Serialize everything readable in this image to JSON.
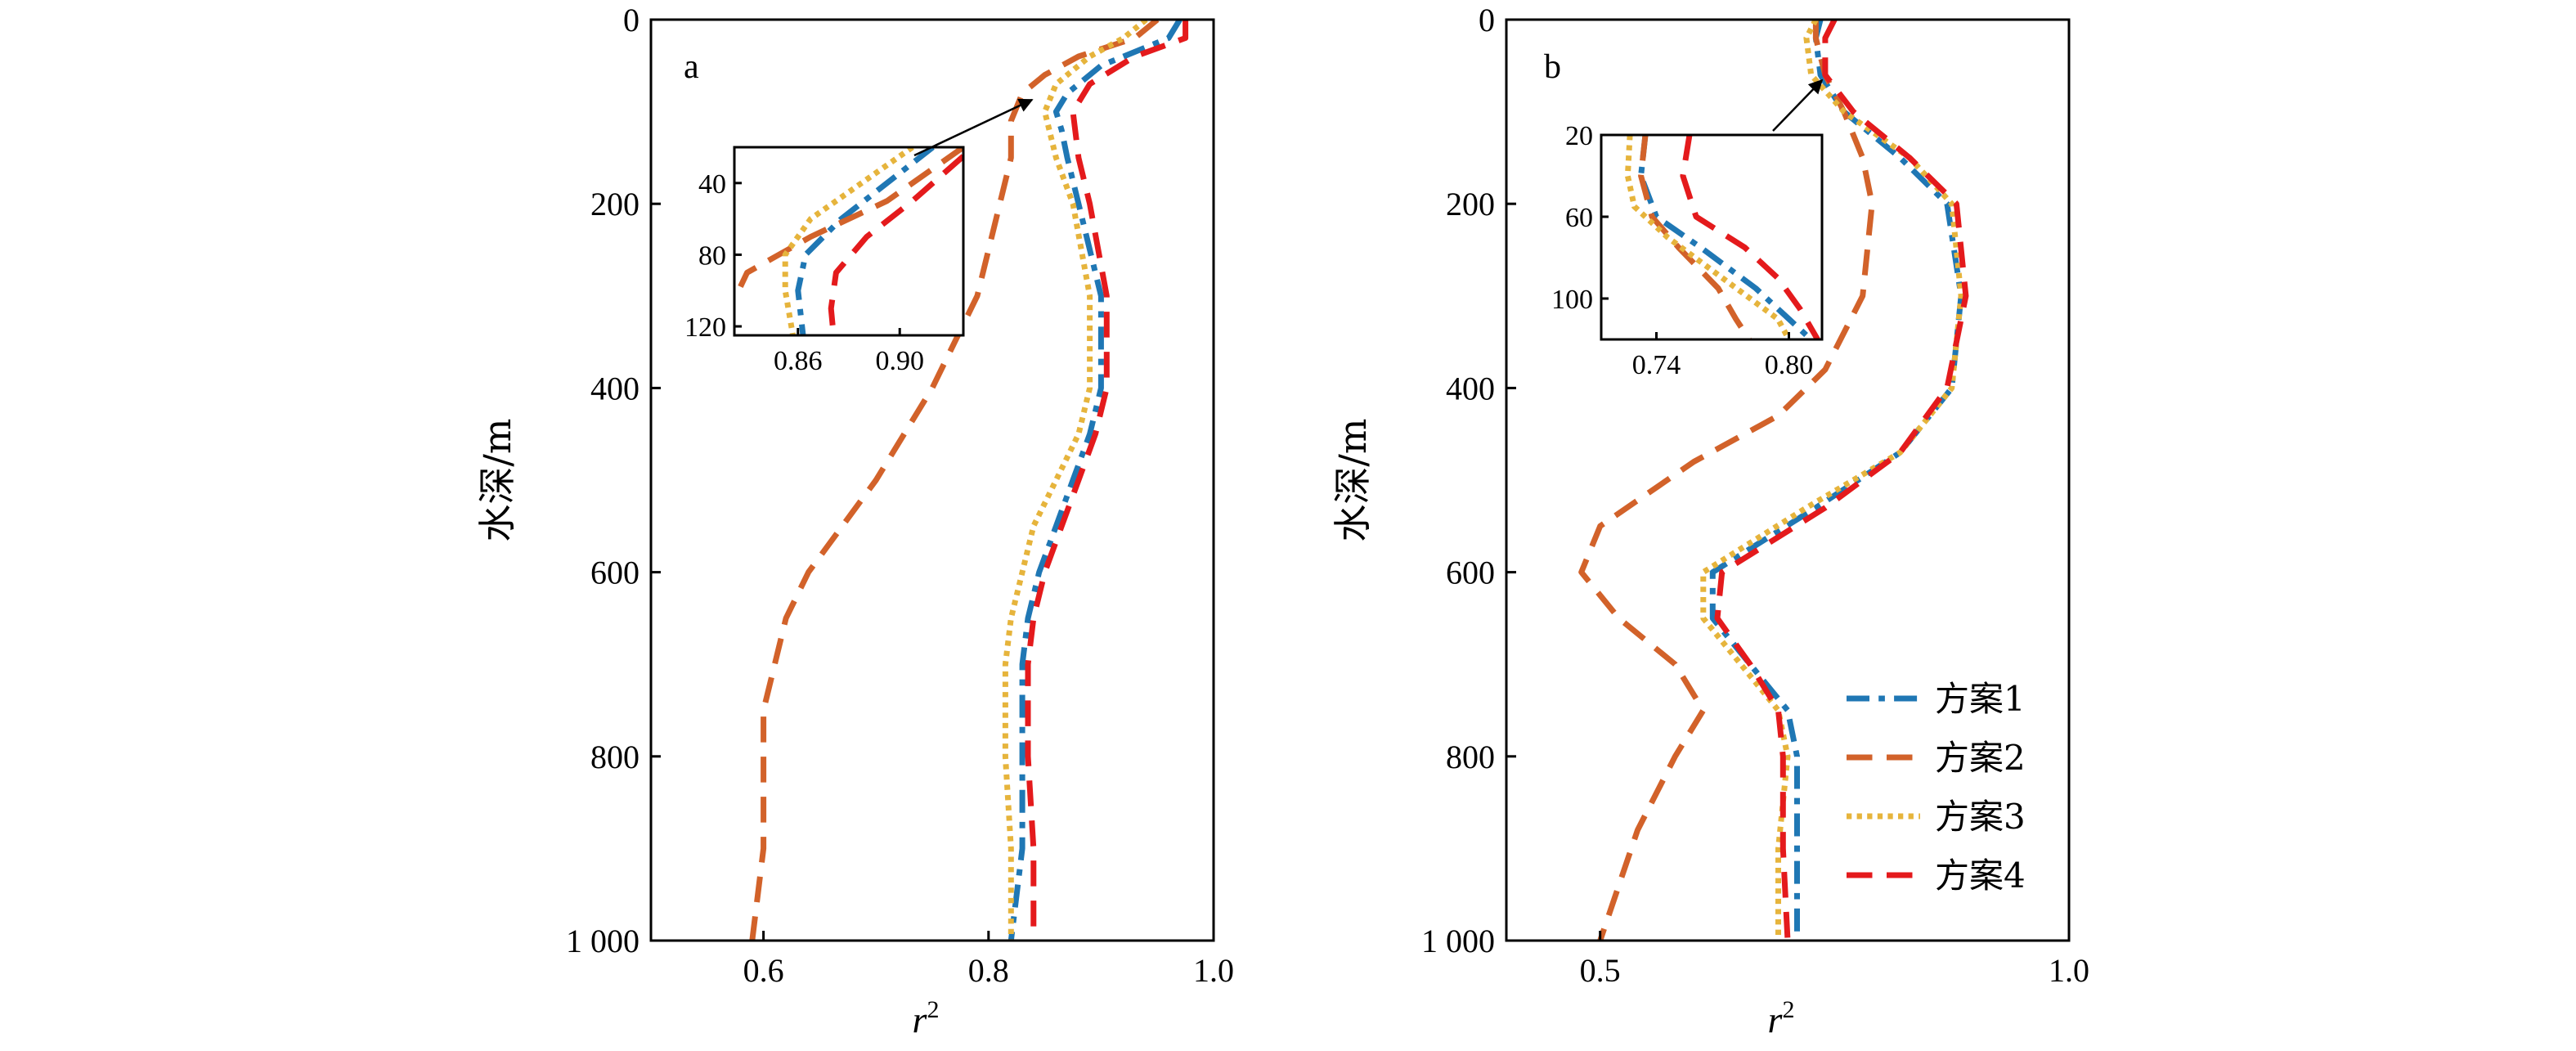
{
  "chart_data": [
    {
      "type": "line",
      "panel_label": "a",
      "xlabel": "r",
      "xlabel_sup": "2",
      "ylabel": "水深/m",
      "xlim": [
        0.5,
        1.0
      ],
      "ylim": [
        1000,
        0
      ],
      "xticks": [
        0.6,
        0.8,
        1.0
      ],
      "xtick_labels": [
        "0.6",
        "0.8",
        "1.0"
      ],
      "yticks": [
        0,
        200,
        400,
        600,
        800,
        1000
      ],
      "ytick_labels": [
        "0",
        "200",
        "400",
        "600",
        "800",
        "1 000"
      ],
      "series": [
        {
          "name": "方案1",
          "color": "#1f77b4",
          "dash": "dashdot",
          "points": [
            [
              0.97,
              0
            ],
            [
              0.96,
              20
            ],
            [
              0.9,
              50
            ],
            [
              0.87,
              80
            ],
            [
              0.86,
              100
            ],
            [
              0.865,
              120
            ],
            [
              0.87,
              150
            ],
            [
              0.88,
              200
            ],
            [
              0.9,
              300
            ],
            [
              0.9,
              400
            ],
            [
              0.89,
              450
            ],
            [
              0.875,
              500
            ],
            [
              0.86,
              550
            ],
            [
              0.845,
              600
            ],
            [
              0.835,
              650
            ],
            [
              0.83,
              700
            ],
            [
              0.83,
              800
            ],
            [
              0.83,
              850
            ],
            [
              0.83,
              900
            ],
            [
              0.82,
              1000
            ]
          ]
        },
        {
          "name": "方案2",
          "color": "#d2622a",
          "dash": "dashed",
          "points": [
            [
              0.95,
              0
            ],
            [
              0.93,
              20
            ],
            [
              0.88,
              40
            ],
            [
              0.85,
              60
            ],
            [
              0.83,
              80
            ],
            [
              0.82,
              110
            ],
            [
              0.82,
              150
            ],
            [
              0.81,
              200
            ],
            [
              0.79,
              300
            ],
            [
              0.75,
              400
            ],
            [
              0.7,
              500
            ],
            [
              0.64,
              600
            ],
            [
              0.62,
              650
            ],
            [
              0.6,
              750
            ],
            [
              0.6,
              800
            ],
            [
              0.6,
              900
            ],
            [
              0.59,
              1000
            ]
          ]
        },
        {
          "name": "方案3",
          "color": "#e6b43c",
          "dash": "dotted",
          "points": [
            [
              0.94,
              0
            ],
            [
              0.92,
              20
            ],
            [
              0.89,
              40
            ],
            [
              0.86,
              70
            ],
            [
              0.85,
              100
            ],
            [
              0.86,
              150
            ],
            [
              0.875,
              200
            ],
            [
              0.89,
              300
            ],
            [
              0.89,
              400
            ],
            [
              0.88,
              450
            ],
            [
              0.86,
              500
            ],
            [
              0.84,
              550
            ],
            [
              0.83,
              600
            ],
            [
              0.82,
              650
            ],
            [
              0.815,
              700
            ],
            [
              0.815,
              800
            ],
            [
              0.82,
              900
            ],
            [
              0.82,
              1000
            ]
          ]
        },
        {
          "name": "方案4",
          "color": "#e41a1c",
          "dash": "dashed",
          "points": [
            [
              0.975,
              0
            ],
            [
              0.975,
              20
            ],
            [
              0.93,
              40
            ],
            [
              0.89,
              70
            ],
            [
              0.875,
              100
            ],
            [
              0.88,
              150
            ],
            [
              0.89,
              200
            ],
            [
              0.905,
              300
            ],
            [
              0.905,
              400
            ],
            [
              0.895,
              450
            ],
            [
              0.88,
              500
            ],
            [
              0.865,
              550
            ],
            [
              0.85,
              600
            ],
            [
              0.84,
              650
            ],
            [
              0.835,
              700
            ],
            [
              0.835,
              800
            ],
            [
              0.84,
              900
            ],
            [
              0.84,
              1000
            ]
          ]
        }
      ],
      "inset": {
        "xlim": [
          0.835,
          0.925
        ],
        "ylim": [
          125,
          20
        ],
        "xticks": [
          0.86,
          0.9
        ],
        "xtick_labels": [
          "0.86",
          "0.90"
        ],
        "yticks": [
          40,
          80,
          120
        ],
        "ytick_labels": [
          "40",
          "80",
          "120"
        ],
        "series": [
          {
            "name": "方案1",
            "points": [
              [
                0.913,
                20
              ],
              [
                0.895,
                40
              ],
              [
                0.877,
                60
              ],
              [
                0.863,
                80
              ],
              [
                0.86,
                100
              ],
              [
                0.862,
                125
              ]
            ]
          },
          {
            "name": "方案2",
            "points": [
              [
                0.925,
                20
              ],
              [
                0.895,
                50
              ],
              [
                0.865,
                70
              ],
              [
                0.84,
                90
              ],
              [
                0.835,
                105
              ]
            ]
          },
          {
            "name": "方案3",
            "points": [
              [
                0.905,
                20
              ],
              [
                0.885,
                40
              ],
              [
                0.865,
                60
              ],
              [
                0.855,
                80
              ],
              [
                0.855,
                100
              ],
              [
                0.858,
                125
              ]
            ]
          },
          {
            "name": "方案4",
            "points": [
              [
                0.925,
                25
              ],
              [
                0.905,
                50
              ],
              [
                0.887,
                70
              ],
              [
                0.875,
                90
              ],
              [
                0.873,
                110
              ],
              [
                0.874,
                125
              ]
            ]
          }
        ]
      }
    },
    {
      "type": "line",
      "panel_label": "b",
      "xlabel": "r",
      "xlabel_sup": "2",
      "ylabel": "水深/m",
      "xlim": [
        0.4,
        1.0
      ],
      "ylim": [
        1000,
        0
      ],
      "xticks": [
        0.5,
        1.0
      ],
      "xtick_labels": [
        "0.5",
        "1.0"
      ],
      "yticks": [
        0,
        200,
        400,
        600,
        800,
        1000
      ],
      "ytick_labels": [
        "0",
        "200",
        "400",
        "600",
        "800",
        "1 000"
      ],
      "series": [
        {
          "name": "方案1",
          "color": "#1f77b4",
          "dash": "dashdot",
          "points": [
            [
              0.735,
              0
            ],
            [
              0.73,
              20
            ],
            [
              0.735,
              60
            ],
            [
              0.76,
              100
            ],
            [
              0.82,
              150
            ],
            [
              0.87,
              200
            ],
            [
              0.885,
              300
            ],
            [
              0.875,
              400
            ],
            [
              0.82,
              470
            ],
            [
              0.73,
              530
            ],
            [
              0.62,
              600
            ],
            [
              0.62,
              650
            ],
            [
              0.66,
              700
            ],
            [
              0.7,
              750
            ],
            [
              0.71,
              800
            ],
            [
              0.71,
              900
            ],
            [
              0.71,
              1000
            ]
          ]
        },
        {
          "name": "方案2",
          "color": "#d2622a",
          "dash": "dashed",
          "points": [
            [
              0.73,
              0
            ],
            [
              0.73,
              20
            ],
            [
              0.74,
              60
            ],
            [
              0.76,
              100
            ],
            [
              0.78,
              150
            ],
            [
              0.79,
              200
            ],
            [
              0.78,
              300
            ],
            [
              0.74,
              380
            ],
            [
              0.69,
              430
            ],
            [
              0.6,
              480
            ],
            [
              0.5,
              550
            ],
            [
              0.48,
              600
            ],
            [
              0.52,
              650
            ],
            [
              0.58,
              700
            ],
            [
              0.61,
              750
            ],
            [
              0.58,
              800
            ],
            [
              0.54,
              880
            ],
            [
              0.5,
              1000
            ]
          ]
        },
        {
          "name": "方案3",
          "color": "#e6b43c",
          "dash": "dotted",
          "points": [
            [
              0.73,
              0
            ],
            [
              0.72,
              20
            ],
            [
              0.725,
              60
            ],
            [
              0.76,
              100
            ],
            [
              0.83,
              150
            ],
            [
              0.875,
              200
            ],
            [
              0.885,
              300
            ],
            [
              0.875,
              400
            ],
            [
              0.82,
              470
            ],
            [
              0.72,
              530
            ],
            [
              0.61,
              600
            ],
            [
              0.61,
              650
            ],
            [
              0.65,
              700
            ],
            [
              0.69,
              750
            ],
            [
              0.7,
              800
            ],
            [
              0.69,
              900
            ],
            [
              0.69,
              1000
            ]
          ]
        },
        {
          "name": "方案4",
          "color": "#e41a1c",
          "dash": "dashed",
          "points": [
            [
              0.75,
              0
            ],
            [
              0.74,
              20
            ],
            [
              0.74,
              60
            ],
            [
              0.77,
              100
            ],
            [
              0.83,
              150
            ],
            [
              0.88,
              200
            ],
            [
              0.89,
              300
            ],
            [
              0.87,
              400
            ],
            [
              0.82,
              470
            ],
            [
              0.74,
              530
            ],
            [
              0.63,
              600
            ],
            [
              0.625,
              650
            ],
            [
              0.66,
              700
            ],
            [
              0.69,
              750
            ],
            [
              0.695,
              800
            ],
            [
              0.695,
              900
            ],
            [
              0.7,
              1000
            ]
          ]
        }
      ],
      "inset": {
        "xlim": [
          0.715,
          0.815
        ],
        "ylim": [
          120,
          20
        ],
        "xticks": [
          0.74,
          0.8
        ],
        "xtick_labels": [
          "0.74",
          "0.80"
        ],
        "yticks": [
          20,
          60,
          100
        ],
        "ytick_labels": [
          "20",
          "60",
          "100"
        ],
        "series": [
          {
            "name": "方案1",
            "points": [
              [
                0.735,
                20
              ],
              [
                0.733,
                40
              ],
              [
                0.74,
                60
              ],
              [
                0.76,
                75
              ],
              [
                0.785,
                95
              ],
              [
                0.8,
                110
              ],
              [
                0.81,
                120
              ]
            ]
          },
          {
            "name": "方案2",
            "points": [
              [
                0.735,
                20
              ],
              [
                0.733,
                40
              ],
              [
                0.738,
                60
              ],
              [
                0.75,
                75
              ],
              [
                0.768,
                95
              ],
              [
                0.776,
                110
              ],
              [
                0.782,
                120
              ]
            ]
          },
          {
            "name": "方案3",
            "points": [
              [
                0.728,
                20
              ],
              [
                0.727,
                40
              ],
              [
                0.73,
                55
              ],
              [
                0.745,
                70
              ],
              [
                0.77,
                90
              ],
              [
                0.795,
                110
              ],
              [
                0.8,
                120
              ]
            ]
          },
          {
            "name": "方案4",
            "points": [
              [
                0.755,
                20
              ],
              [
                0.752,
                40
              ],
              [
                0.758,
                60
              ],
              [
                0.78,
                75
              ],
              [
                0.795,
                90
              ],
              [
                0.805,
                105
              ],
              [
                0.813,
                120
              ]
            ]
          }
        ]
      }
    }
  ],
  "legend": {
    "placement": "lower-right of panel b",
    "entries": [
      "方案1",
      "方案2",
      "方案3",
      "方案4"
    ]
  }
}
